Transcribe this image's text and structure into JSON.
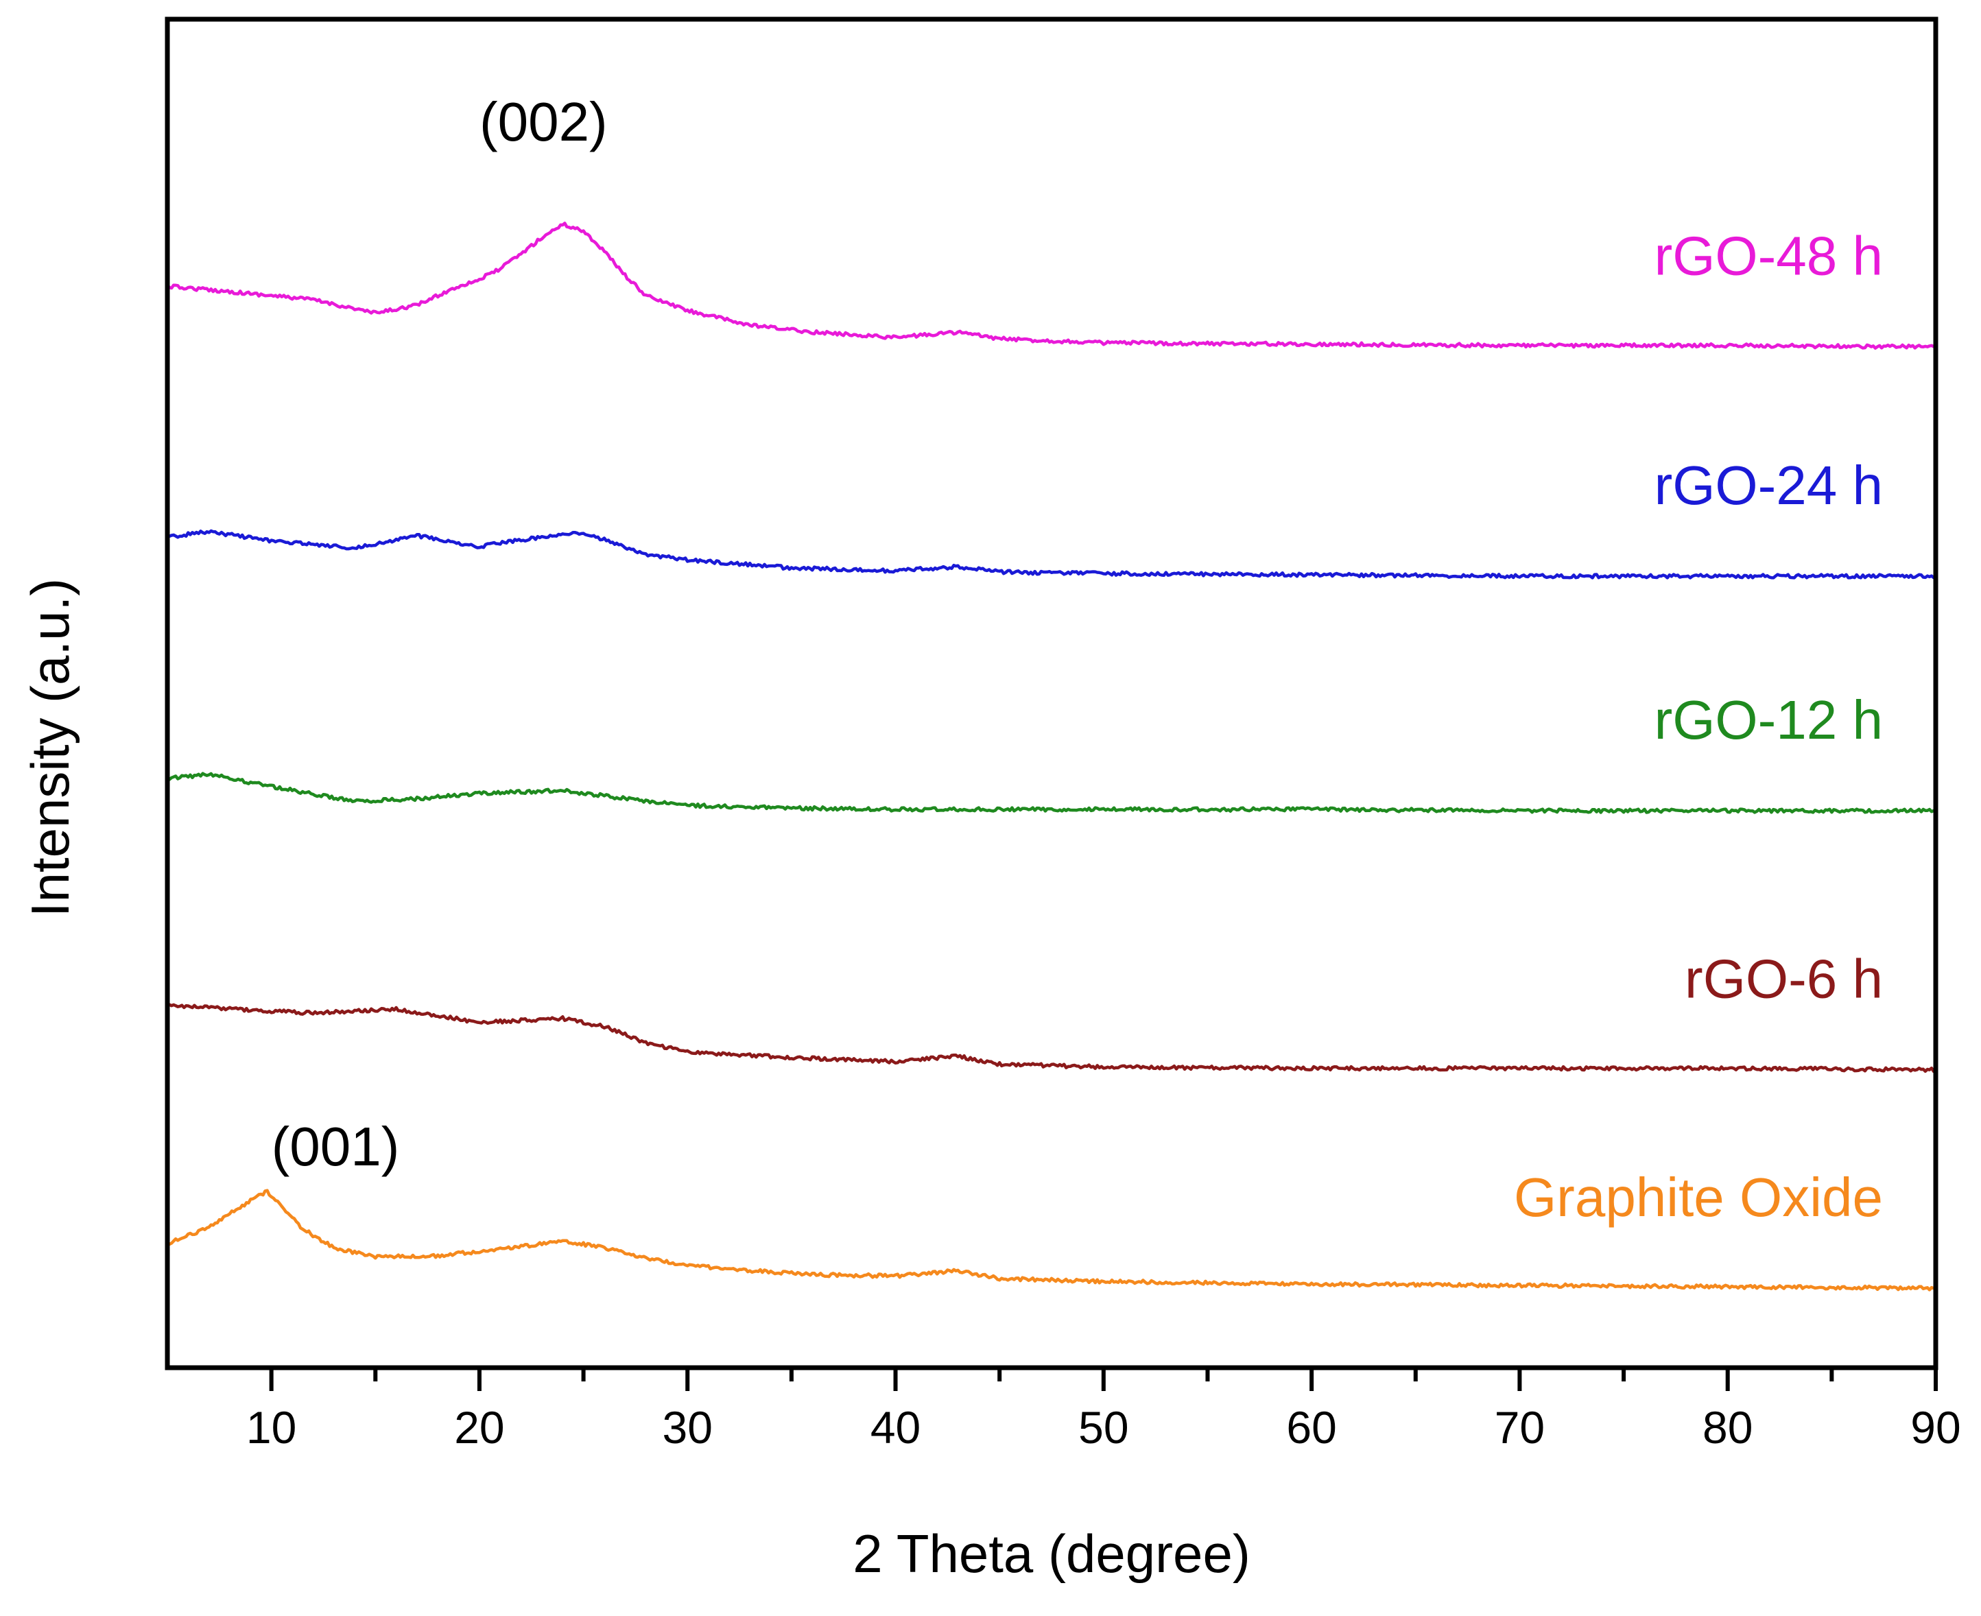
{
  "chart_data": {
    "type": "line",
    "title": "",
    "xlabel": "2 Theta (degree)",
    "ylabel": "Intensity (a.u.)",
    "xlim": [
      5,
      90
    ],
    "ylim": [
      0,
      1
    ],
    "y_ticks_shown": false,
    "grid": false,
    "legend": "inline labels at right end of each curve",
    "x_ticks": [
      10,
      20,
      30,
      40,
      50,
      60,
      70,
      80,
      90
    ],
    "x_tick_labels": [
      "10",
      "20",
      "30",
      "40",
      "50",
      "60",
      "70",
      "80",
      "90"
    ],
    "annotations": [
      {
        "text": "(002)",
        "x": 20,
        "y": 0.91
      },
      {
        "text": "(001)",
        "x": 10,
        "y": 0.15
      }
    ],
    "series": [
      {
        "name": "rGO-48 h",
        "color": "#e81ad8",
        "x": [
          5,
          8,
          12,
          15,
          17,
          19,
          20,
          21,
          22,
          23,
          24,
          25,
          26,
          27,
          28,
          30,
          33,
          36,
          40,
          43,
          45,
          50,
          60,
          70,
          80,
          90
        ],
        "y": [
          0.802,
          0.798,
          0.792,
          0.782,
          0.788,
          0.802,
          0.807,
          0.815,
          0.826,
          0.838,
          0.848,
          0.843,
          0.828,
          0.81,
          0.795,
          0.784,
          0.773,
          0.768,
          0.764,
          0.768,
          0.763,
          0.76,
          0.759,
          0.758,
          0.758,
          0.757
        ],
        "label_text": "rGO-48 h"
      },
      {
        "name": "rGO-24 h",
        "color": "#1a1ad6",
        "x": [
          5,
          7,
          10,
          14,
          17,
          20,
          23,
          25,
          26,
          28,
          30,
          35,
          40,
          43,
          45,
          50,
          60,
          70,
          80,
          90
        ],
        "y": [
          0.616,
          0.62,
          0.613,
          0.608,
          0.617,
          0.609,
          0.616,
          0.619,
          0.614,
          0.603,
          0.599,
          0.593,
          0.591,
          0.594,
          0.59,
          0.589,
          0.588,
          0.587,
          0.587,
          0.587
        ],
        "label_text": "rGO-24 h"
      },
      {
        "name": "rGO-12 h",
        "color": "#1f8a1f",
        "x": [
          5,
          7,
          10,
          14,
          17,
          20,
          24,
          27,
          30,
          35,
          40,
          50,
          60,
          70,
          80,
          90
        ],
        "y": [
          0.437,
          0.44,
          0.431,
          0.42,
          0.422,
          0.426,
          0.428,
          0.422,
          0.417,
          0.415,
          0.414,
          0.414,
          0.414,
          0.413,
          0.413,
          0.413
        ],
        "label_text": "rGO-12 h"
      },
      {
        "name": "rGO-6 h",
        "color": "#8b1a1a",
        "x": [
          5,
          8,
          12,
          16,
          20,
          24,
          26,
          28,
          30,
          35,
          40,
          43,
          45,
          50,
          60,
          70,
          80,
          90
        ],
        "y": [
          0.269,
          0.266,
          0.263,
          0.266,
          0.256,
          0.259,
          0.253,
          0.241,
          0.234,
          0.23,
          0.227,
          0.231,
          0.225,
          0.223,
          0.222,
          0.222,
          0.222,
          0.221
        ],
        "label_text": "rGO-6 h"
      },
      {
        "name": "Graphite Oxide",
        "color": "#f5891d",
        "x": [
          5,
          7,
          8,
          9,
          9.8,
          10.5,
          11.5,
          13,
          15,
          18,
          21,
          24,
          26,
          28,
          30,
          33,
          36,
          40,
          43,
          45,
          50,
          60,
          70,
          80,
          90
        ],
        "y": [
          0.092,
          0.104,
          0.114,
          0.124,
          0.131,
          0.119,
          0.103,
          0.089,
          0.082,
          0.083,
          0.088,
          0.094,
          0.089,
          0.081,
          0.076,
          0.072,
          0.069,
          0.068,
          0.072,
          0.066,
          0.064,
          0.062,
          0.061,
          0.06,
          0.059
        ],
        "label_text": "Graphite Oxide"
      }
    ]
  }
}
